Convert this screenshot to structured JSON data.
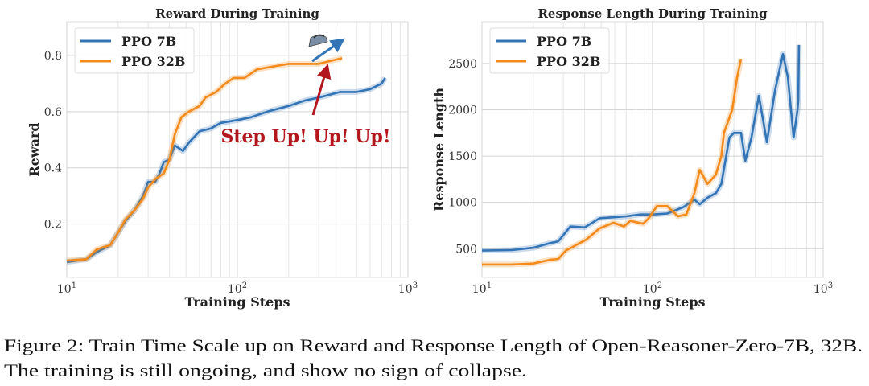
{
  "chart_data": [
    {
      "type": "line",
      "title": "Reward During Training",
      "xlabel": "Training Steps",
      "ylabel": "Reward",
      "xscale": "log",
      "xlim": [
        10,
        1000
      ],
      "ylim": [
        0.01,
        0.92
      ],
      "xticks": [
        10,
        100,
        1000
      ],
      "xtick_labels": [
        [
          "10",
          "1"
        ],
        [
          "10",
          "2"
        ],
        [
          "10",
          "3"
        ]
      ],
      "yticks": [
        0.2,
        0.4,
        0.6,
        0.8
      ],
      "ytick_labels": [
        "0.2",
        "0.4",
        "0.6",
        "0.8"
      ],
      "grid": true,
      "legend": "top-left",
      "series": [
        {
          "name": "PPO 7B",
          "color": "#3274b5",
          "x": [
            10,
            13,
            15,
            18,
            20,
            22,
            25,
            28,
            30,
            33,
            35,
            37,
            40,
            43,
            48,
            52,
            60,
            70,
            80,
            100,
            120,
            150,
            200,
            250,
            300,
            400,
            500,
            600,
            700,
            735
          ],
          "y": [
            0.065,
            0.075,
            0.1,
            0.125,
            0.17,
            0.21,
            0.25,
            0.3,
            0.35,
            0.35,
            0.38,
            0.42,
            0.43,
            0.48,
            0.46,
            0.49,
            0.53,
            0.54,
            0.56,
            0.57,
            0.58,
            0.6,
            0.62,
            0.64,
            0.65,
            0.67,
            0.67,
            0.68,
            0.7,
            0.72
          ]
        },
        {
          "name": "PPO 32B",
          "color": "#f28a1c",
          "x": [
            10,
            13,
            15,
            18,
            20,
            22,
            25,
            28,
            30,
            33,
            37,
            40,
            43,
            47,
            52,
            60,
            65,
            75,
            85,
            95,
            110,
            130,
            160,
            200,
            250,
            300,
            350,
            411
          ],
          "y": [
            0.07,
            0.075,
            0.11,
            0.125,
            0.17,
            0.215,
            0.25,
            0.29,
            0.33,
            0.36,
            0.38,
            0.43,
            0.52,
            0.58,
            0.6,
            0.62,
            0.65,
            0.67,
            0.7,
            0.72,
            0.72,
            0.75,
            0.76,
            0.77,
            0.77,
            0.77,
            0.78,
            0.79
          ]
        }
      ],
      "annotation": {
        "text": "Step Up! Up! Up!",
        "color": "#b3161d",
        "arrow_color": "#b3161d",
        "trend_arrow_color": "#3274b5",
        "icon": "iron-icon"
      }
    },
    {
      "type": "line",
      "title": "Response Length During Training",
      "xlabel": "Training Steps",
      "ylabel": "Response Length",
      "xscale": "log",
      "xlim": [
        10,
        1000
      ],
      "ylim": [
        190,
        2950
      ],
      "xticks": [
        10,
        100,
        1000
      ],
      "xtick_labels": [
        [
          "10",
          "1"
        ],
        [
          "10",
          "2"
        ],
        [
          "10",
          "3"
        ]
      ],
      "yticks": [
        500,
        1000,
        1500,
        2000,
        2500
      ],
      "ytick_labels": [
        "500",
        "1000",
        "1500",
        "2000",
        "2500"
      ],
      "grid": true,
      "legend": "top-left",
      "series": [
        {
          "name": "PPO 7B",
          "color": "#3274b5",
          "x": [
            10,
            15,
            20,
            25,
            28,
            33,
            40,
            49,
            60,
            70,
            85,
            100,
            122,
            152,
            176,
            189,
            210,
            235,
            253,
            282,
            300,
            330,
            350,
            380,
            420,
            468,
            521,
            581,
            621,
            671,
            707,
            715,
            721
          ],
          "y": [
            480,
            485,
            510,
            560,
            580,
            740,
            730,
            830,
            840,
            850,
            870,
            870,
            880,
            950,
            1030,
            980,
            1050,
            1100,
            1200,
            1700,
            1750,
            1750,
            1450,
            1700,
            2150,
            1650,
            2200,
            2600,
            2350,
            1700,
            2000,
            2100,
            2700
          ]
        },
        {
          "name": "PPO 32B",
          "color": "#f28a1c",
          "x": [
            10,
            15,
            20,
            25,
            28,
            31,
            41,
            49,
            59,
            68,
            74,
            88,
            95,
            106,
            122,
            141,
            158,
            176,
            189,
            210,
            235,
            253,
            262,
            293,
            313,
            330
          ],
          "y": [
            330,
            330,
            340,
            380,
            390,
            480,
            600,
            720,
            780,
            740,
            800,
            770,
            830,
            960,
            960,
            850,
            870,
            1100,
            1350,
            1200,
            1300,
            1500,
            1750,
            2000,
            2350,
            2550
          ]
        }
      ]
    }
  ],
  "caption": {
    "line1": "Figure 2: Train Time Scale up on Reward and Response Length of Open-Reasoner-Zero-7B, 32B.",
    "line2": "The training is still ongoing, and show no sign of collapse."
  }
}
